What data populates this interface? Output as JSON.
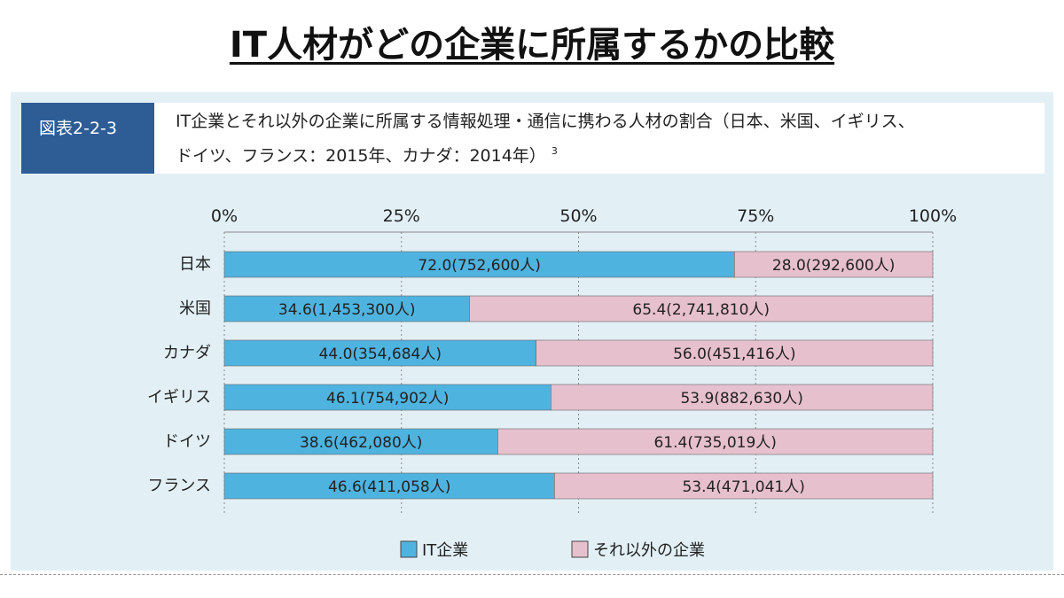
{
  "page": {
    "title": "IT人材がどの企業に所属するかの比較"
  },
  "figure": {
    "label": "図表2-2-3",
    "caption_line1": "IT企業とそれ以外の企業に所属する情報処理・通信に携わる人材の割合（日本、米国、イギリス、",
    "caption_line2": "ドイツ、フランス：2015年、カナダ：2014年）",
    "footnote_ref": "3"
  },
  "colors": {
    "it": "#4fb3df",
    "other": "#e7c0cd",
    "panel": "#e2f0f6"
  },
  "chart_data": {
    "type": "bar",
    "orientation": "horizontal",
    "stacked": true,
    "xlim": [
      0,
      100
    ],
    "tick_values": [
      0,
      25,
      50,
      75,
      100
    ],
    "tick_labels": [
      "0%",
      "25%",
      "50%",
      "75%",
      "100%"
    ],
    "categories": [
      "日本",
      "米国",
      "カナダ",
      "イギリス",
      "ドイツ",
      "フランス"
    ],
    "series": [
      {
        "name": "IT企業",
        "values": [
          72.0,
          34.6,
          44.0,
          46.1,
          38.6,
          46.6
        ],
        "labels": [
          "72.0(752,600人)",
          "34.6(1,453,300人)",
          "44.0(354,684人)",
          "46.1(754,902人)",
          "38.6(462,080人)",
          "46.6(411,058人)"
        ]
      },
      {
        "name": "それ以外の企業",
        "values": [
          28.0,
          65.4,
          56.0,
          53.9,
          61.4,
          53.4
        ],
        "labels": [
          "28.0(292,600人)",
          "65.4(2,741,810人)",
          "56.0(451,416人)",
          "53.9(882,630人)",
          "61.4(735,019人)",
          "53.4(471,041人)"
        ]
      }
    ],
    "legend": [
      "IT企業",
      "それ以外の企業"
    ],
    "legend_position": "bottom",
    "grid": true
  }
}
